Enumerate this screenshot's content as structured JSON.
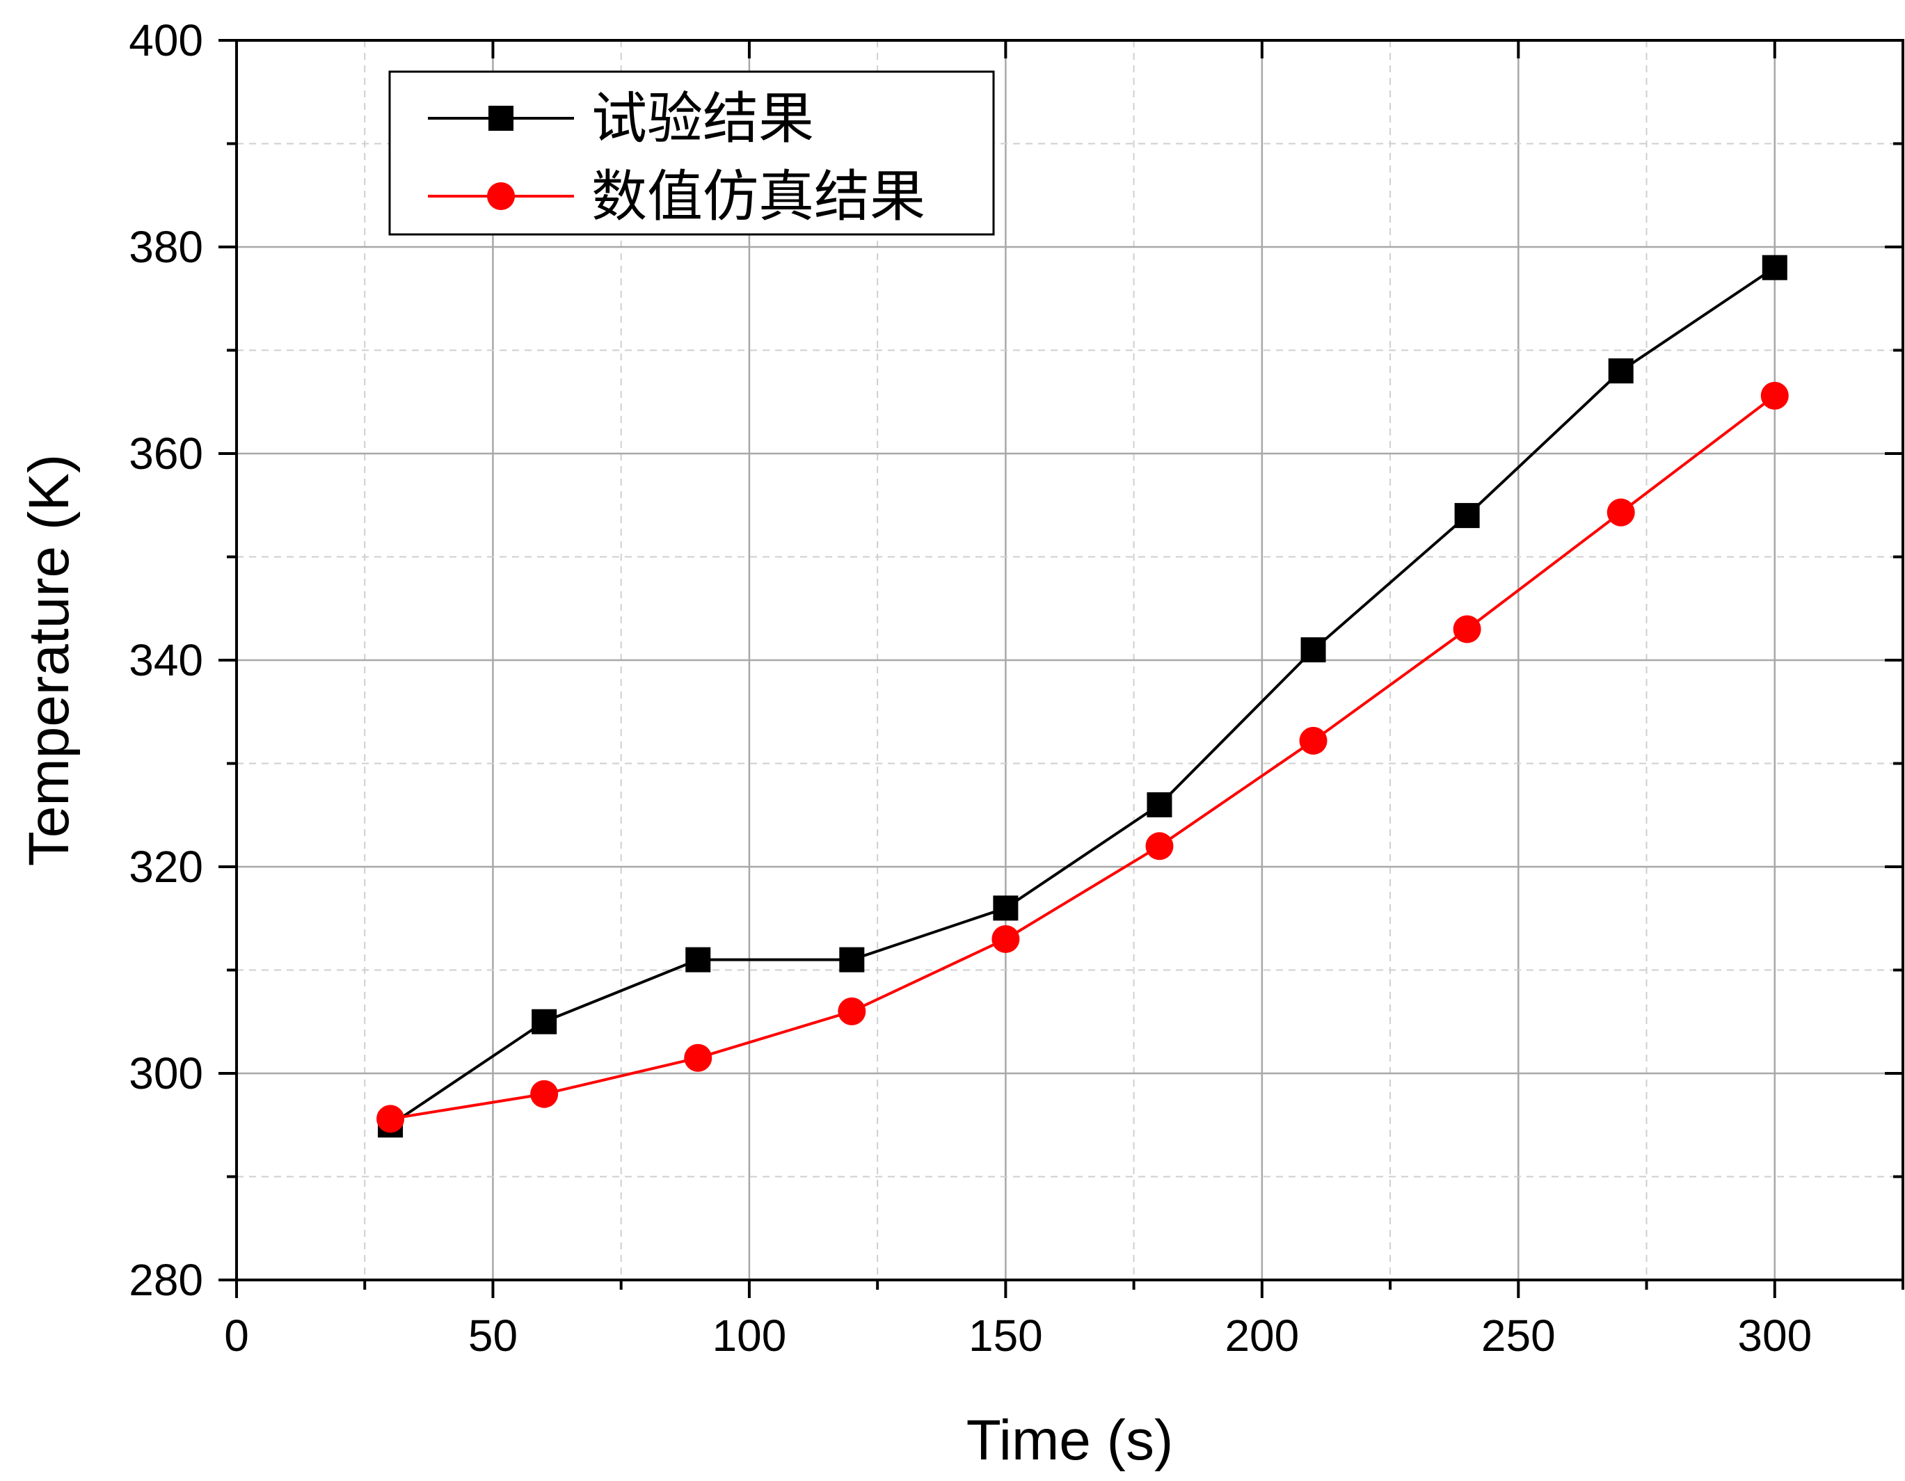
{
  "chart_data": {
    "type": "line",
    "title": "",
    "xlabel": "Time (s)",
    "ylabel": "Temperature (K)",
    "xlim": [
      0,
      325
    ],
    "ylim": [
      280,
      400
    ],
    "x_ticks": [
      0,
      50,
      100,
      150,
      200,
      250,
      300
    ],
    "y_ticks": [
      280,
      300,
      320,
      340,
      360,
      380,
      400
    ],
    "x_minor_ticks": [
      25,
      75,
      125,
      175,
      225,
      275,
      325
    ],
    "y_minor_ticks": [
      290,
      310,
      330,
      350,
      370,
      390
    ],
    "grid": true,
    "legend_position": "top-left",
    "x": [
      30,
      60,
      90,
      120,
      150,
      180,
      210,
      240,
      270,
      300
    ],
    "series": [
      {
        "name": "试验结果",
        "color": "#000000",
        "marker": "square",
        "values": [
          295,
          305,
          311,
          311,
          316,
          326,
          341,
          354,
          368,
          378
        ]
      },
      {
        "name": "数值仿真结果",
        "color": "#ff0000",
        "marker": "circle",
        "values": [
          295.6,
          298.0,
          301.5,
          306.0,
          313.0,
          322.0,
          332.2,
          343.0,
          354.3,
          365.6
        ]
      }
    ]
  }
}
